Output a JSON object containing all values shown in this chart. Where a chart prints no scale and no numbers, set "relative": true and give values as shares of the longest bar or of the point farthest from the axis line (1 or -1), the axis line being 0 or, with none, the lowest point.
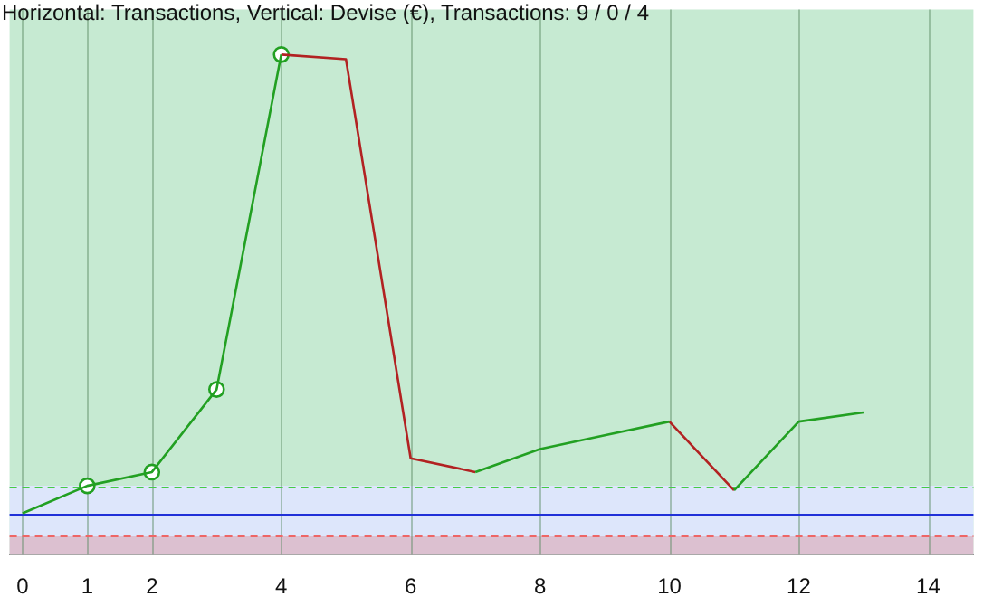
{
  "chart_data": {
    "type": "line",
    "title": "Horizontal: Transactions, Vertical: Devise (€), Transactions: 9 / 0 / 4",
    "relative": true,
    "x": [
      0,
      1,
      2,
      3,
      4,
      5,
      6,
      7,
      8,
      9,
      10,
      11,
      12,
      13
    ],
    "xlim": [
      -0.2,
      14.7
    ],
    "xticks": [
      0,
      1,
      2,
      4,
      6,
      8,
      10,
      12,
      14
    ],
    "series": [
      {
        "color": "#22a022",
        "values": [
          0,
          0.06,
          0.09,
          0.27,
          1,
          null,
          null,
          0.09,
          0.14,
          0.17,
          0.2,
          null,
          null,
          null
        ],
        "marker": "none"
      },
      {
        "color": "#22a022",
        "values": [
          null,
          null,
          null,
          null,
          null,
          null,
          null,
          null,
          null,
          null,
          null,
          0.05,
          0.2,
          0.22
        ],
        "marker": "none"
      },
      {
        "color": "#b22222",
        "values": [
          null,
          null,
          null,
          null,
          1,
          0.99,
          0.12,
          0.09,
          null,
          null,
          0.2,
          0.05,
          null,
          null
        ],
        "marker": "none"
      },
      {
        "type": "scatter",
        "color": "#22a022",
        "x": [
          1,
          2,
          3,
          4
        ],
        "values": [
          0.06,
          0.09,
          0.27,
          1
        ],
        "marker": "circle"
      }
    ],
    "bands": [
      {
        "axis": "y",
        "from": -0.05,
        "to": 0.06,
        "color": "#dde6fb"
      },
      {
        "axis": "y",
        "from": -0.09,
        "to": -0.05,
        "color": "#dcc0d0"
      }
    ],
    "ref_lines": [
      {
        "axis": "y",
        "value": 0,
        "color": "#2030d8",
        "line_style": "solid"
      },
      {
        "axis": "y",
        "value": 0.06,
        "color": "#44cc44",
        "line_style": "dashed"
      },
      {
        "axis": "y",
        "value": -0.05,
        "color": "#ee6666",
        "line_style": "dashed"
      }
    ],
    "grid": "x",
    "legend": false
  }
}
